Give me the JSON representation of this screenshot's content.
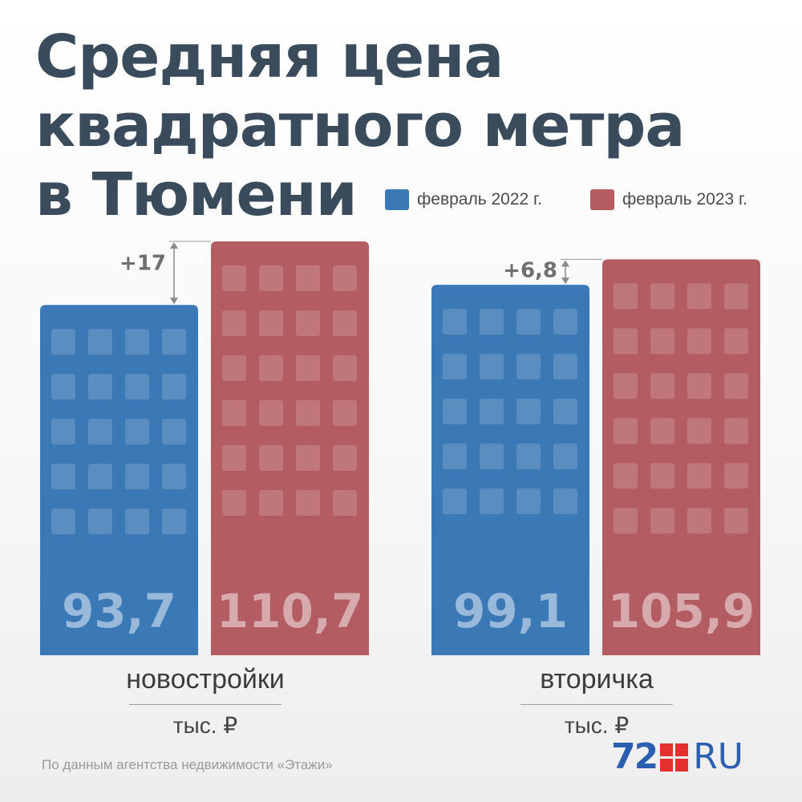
{
  "title_lines": [
    "Средняя цена",
    "квадратного метра",
    "в Тюмени"
  ],
  "source": "По данным агентства недвижимости «Этажи»",
  "logo": {
    "number": "72",
    "suffix": "RU"
  },
  "colors": {
    "series_2022": "#3b79b6",
    "series_2023": "#b35d63",
    "title": "#3a4b5c",
    "logo_accent": "#e5312e"
  },
  "chart_data": {
    "type": "bar",
    "title": "Средняя цена квадратного метра в Тюмени",
    "categories": [
      "новостройки",
      "вторичка"
    ],
    "unit": "тыс. ₽",
    "series": [
      {
        "name": "февраль 2022 г.",
        "values": [
          93.7,
          99.1
        ],
        "labels": [
          "93,7",
          "99,1"
        ]
      },
      {
        "name": "февраль 2023 г.",
        "values": [
          110.7,
          105.9
        ],
        "labels": [
          "110,7",
          "105,9"
        ]
      }
    ],
    "differences": [
      "+17",
      "+6,8"
    ],
    "legend_position": "top-right",
    "grid": false
  }
}
